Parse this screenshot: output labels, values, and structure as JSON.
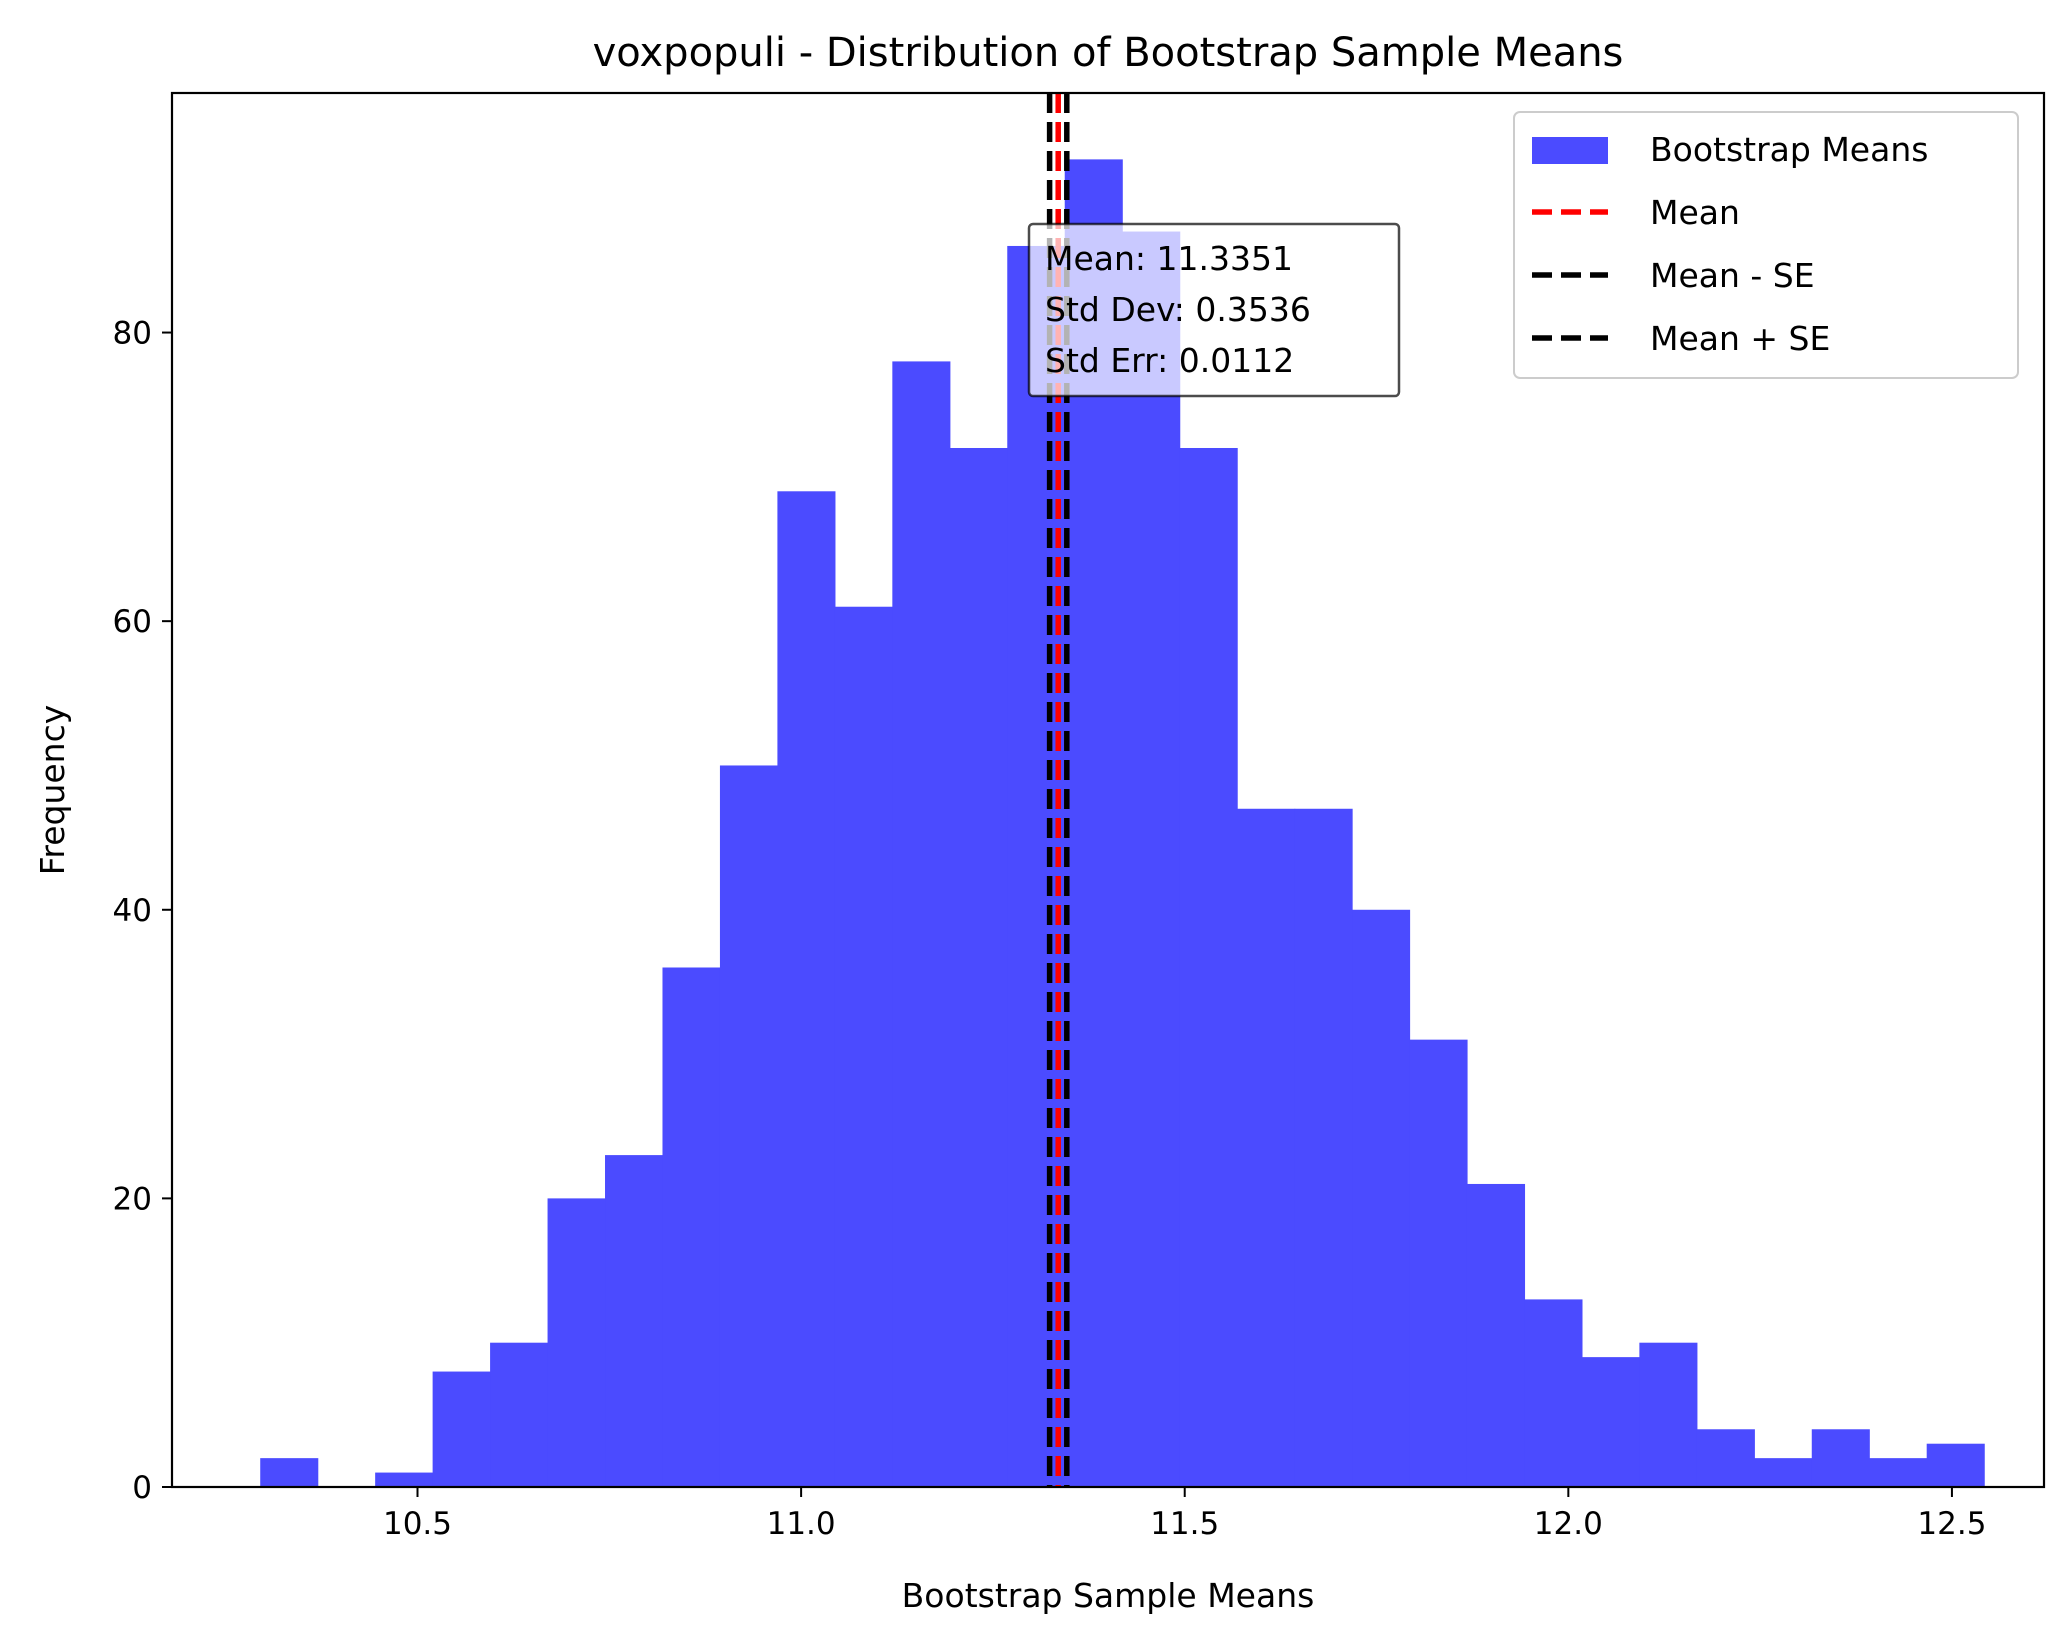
{
  "chart_data": {
    "type": "bar",
    "title": "voxpopuli - Distribution of Bootstrap Sample Means",
    "xlabel": "Bootstrap Sample Means",
    "ylabel": "Frequency",
    "xlim": [
      10.18,
      12.62
    ],
    "ylim": [
      0,
      96.6
    ],
    "x_ticks": [
      10.5,
      11.0,
      11.5,
      12.0,
      12.5
    ],
    "x_tick_labels": [
      "10.5",
      "11.0",
      "11.5",
      "12.0",
      "12.5"
    ],
    "y_ticks": [
      0,
      20,
      40,
      60,
      80
    ],
    "y_tick_labels": [
      "0",
      "20",
      "40",
      "60",
      "80"
    ],
    "bin_start": 10.295,
    "bin_width": 0.0749,
    "values": [
      2,
      0,
      1,
      8,
      10,
      20,
      23,
      36,
      50,
      69,
      61,
      78,
      72,
      86,
      92,
      87,
      72,
      47,
      47,
      40,
      31,
      21,
      13,
      9,
      10,
      4,
      2,
      4,
      2,
      3
    ],
    "bar_color": "#4b4bff",
    "lines": {
      "mean": {
        "x": 11.3351,
        "color": "#ff0000"
      },
      "mean_minus_se": {
        "x": 11.3239,
        "color": "#000000"
      },
      "mean_plus_se": {
        "x": 11.3463,
        "color": "#000000"
      }
    },
    "stats_box": [
      "Mean: 11.3351",
      "Std Dev: 0.3536",
      "Std Err: 0.0112"
    ],
    "legend": {
      "placement": "top-right",
      "entries": [
        {
          "label": "Bootstrap Means",
          "kind": "patch",
          "color": "#4b4bff"
        },
        {
          "label": "Mean",
          "kind": "dashed",
          "color": "#ff0000"
        },
        {
          "label": "Mean - SE",
          "kind": "dashed",
          "color": "#000000"
        },
        {
          "label": "Mean + SE",
          "kind": "dashed",
          "color": "#000000"
        }
      ]
    },
    "grid": false
  }
}
